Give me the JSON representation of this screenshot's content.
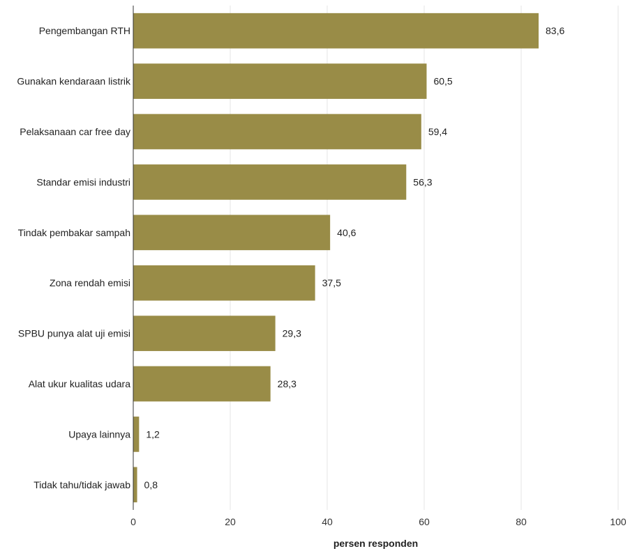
{
  "chart_data": {
    "type": "bar",
    "orientation": "horizontal",
    "categories": [
      "Pengembangan RTH",
      "Gunakan kendaraan listrik",
      "Pelaksanaan car free day",
      "Standar emisi industri",
      "Tindak pembakar sampah",
      "Zona rendah emisi",
      "SPBU punya alat uji emisi",
      "Alat ukur kualitas udara",
      "Upaya lainnya",
      "Tidak tahu/tidak jawab"
    ],
    "values": [
      83.6,
      60.5,
      59.4,
      56.3,
      40.6,
      37.5,
      29.3,
      28.3,
      1.2,
      0.8
    ],
    "value_labels": [
      "83,6",
      "60,5",
      "59,4",
      "56,3",
      "40,6",
      "37,5",
      "29,3",
      "28,3",
      "1,2",
      "0,8"
    ],
    "xlabel": "persen responden",
    "xlim": [
      0,
      100
    ],
    "xticks": [
      0,
      20,
      40,
      60,
      80,
      100
    ],
    "grid": "vertical",
    "bar_color": "#998c47",
    "legend": "none"
  }
}
